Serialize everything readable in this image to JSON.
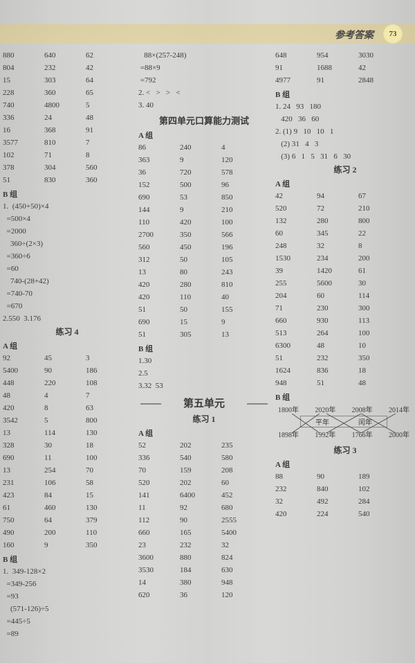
{
  "header": {
    "title": "参考答案",
    "page_num": "73"
  },
  "col1": {
    "rowsA": [
      [
        "880",
        "640",
        "62"
      ],
      [
        "804",
        "232",
        "42"
      ],
      [
        "15",
        "303",
        "64"
      ],
      [
        "228",
        "360",
        "65"
      ],
      [
        "740",
        "4800",
        "5"
      ],
      [
        "336",
        "24",
        "48"
      ],
      [
        "16",
        "368",
        "91"
      ],
      [
        "3577",
        "810",
        "7"
      ],
      [
        "102",
        "71",
        "8"
      ],
      [
        "378",
        "304",
        "560"
      ],
      [
        "51",
        "830",
        "360"
      ]
    ],
    "B_label": "B 组",
    "steps1": [
      "1.  (450+50)×4",
      "  =500×4",
      "  =2000",
      "    360÷(2×3)",
      "  =360÷6",
      "  =60",
      "    740-(28+42)",
      "  =740-70",
      "  =670",
      "2.550  3.176"
    ],
    "ex4": "练习 4",
    "A_label": "A 组",
    "rowsB": [
      [
        "92",
        "45",
        "3"
      ],
      [
        "5400",
        "90",
        "186"
      ],
      [
        "448",
        "220",
        "108"
      ],
      [
        "48",
        "4",
        "7"
      ],
      [
        "420",
        "8",
        "63"
      ],
      [
        "3542",
        "5",
        "800"
      ],
      [
        "13",
        "114",
        "130"
      ],
      [
        "328",
        "30",
        "18"
      ],
      [
        "690",
        "11",
        "100"
      ],
      [
        "13",
        "254",
        "70"
      ],
      [
        "231",
        "106",
        "58"
      ],
      [
        "423",
        "84",
        "15"
      ],
      [
        "61",
        "460",
        "130"
      ],
      [
        "750",
        "64",
        "379"
      ],
      [
        "490",
        "200",
        "110"
      ],
      [
        "160",
        "9",
        "350"
      ]
    ],
    "B2_label": "B 组",
    "steps2": [
      "1.  349-128×2",
      "  =349-256",
      "  =93",
      "    (571-126)÷5",
      "  =445÷5",
      "  =89"
    ]
  },
  "col2": {
    "top": [
      "   88×(257-248)",
      " =88×9",
      " =792",
      "2. <   >   >   <",
      "3. 40"
    ],
    "unit4_test": "第四单元口算能力测试",
    "A_label": "A 组",
    "rowsA": [
      [
        "86",
        "240",
        "4"
      ],
      [
        "363",
        "9",
        "120"
      ],
      [
        "36",
        "720",
        "578"
      ],
      [
        "152",
        "500",
        "96"
      ],
      [
        "690",
        "53",
        "850"
      ],
      [
        "144",
        "9",
        "210"
      ],
      [
        "110",
        "420",
        "100"
      ],
      [
        "2700",
        "350",
        "566"
      ],
      [
        "560",
        "450",
        "196"
      ],
      [
        "312",
        "50",
        "105"
      ],
      [
        "13",
        "80",
        "243"
      ],
      [
        "420",
        "280",
        "810"
      ],
      [
        "420",
        "110",
        "40"
      ],
      [
        "51",
        "50",
        "155"
      ],
      [
        "690",
        "15",
        "9"
      ],
      [
        "51",
        "305",
        "13"
      ]
    ],
    "B_label": "B 组",
    "B_lines": [
      "1.30",
      "2.5",
      "3.32  53"
    ],
    "unit5": "第五单元",
    "ex1": "练习 1",
    "A2_label": "A 组",
    "rowsB": [
      [
        "52",
        "202",
        "235"
      ],
      [
        "336",
        "540",
        "580"
      ],
      [
        "70",
        "159",
        "208"
      ],
      [
        "520",
        "202",
        "60"
      ],
      [
        "141",
        "6400",
        "452"
      ],
      [
        "11",
        "92",
        "680"
      ],
      [
        "112",
        "90",
        "2555"
      ],
      [
        "660",
        "165",
        "5400"
      ],
      [
        "23",
        "232",
        "32"
      ],
      [
        "3600",
        "880",
        "824"
      ],
      [
        "3530",
        "184",
        "630"
      ],
      [
        "14",
        "380",
        "948"
      ],
      [
        "620",
        "36",
        "120"
      ]
    ]
  },
  "col3": {
    "rowsTop": [
      [
        "648",
        "954",
        "3030"
      ],
      [
        "91",
        "1688",
        "42"
      ],
      [
        "4977",
        "91",
        "2848"
      ]
    ],
    "B_label": "B 组",
    "B_lines": [
      "1. 24   93   180",
      "   420   36   60",
      "2. (1) 9   10   10   1",
      "   (2) 31   4   3",
      "   (3) 6   1   5   31   6   30"
    ],
    "ex2": "练习 2",
    "A_label": "A 组",
    "rowsA": [
      [
        "42",
        "94",
        "67"
      ],
      [
        "520",
        "72",
        "210"
      ],
      [
        "132",
        "280",
        "800"
      ],
      [
        "60",
        "345",
        "22"
      ],
      [
        "248",
        "32",
        "8"
      ],
      [
        "1530",
        "234",
        "200"
      ],
      [
        "39",
        "1420",
        "61"
      ],
      [
        "255",
        "5600",
        "30"
      ],
      [
        "204",
        "60",
        "114"
      ],
      [
        "71",
        "230",
        "300"
      ],
      [
        "660",
        "930",
        "113"
      ],
      [
        "513",
        "264",
        "100"
      ],
      [
        "6300",
        "48",
        "10"
      ],
      [
        "51",
        "232",
        "350"
      ],
      [
        "1624",
        "836",
        "18"
      ],
      [
        "948",
        "51",
        "48"
      ]
    ],
    "B2_label": "B 组",
    "cross": {
      "top": [
        "1800年",
        "2020年",
        "2008年",
        "2014年"
      ],
      "mid": [
        "平年",
        "闰年"
      ],
      "bot": [
        "1898年",
        "1992年",
        "1766年",
        "2000年"
      ]
    },
    "ex3": "练习 3",
    "A2_label": "A 组",
    "rowsB": [
      [
        "88",
        "90",
        "189"
      ],
      [
        "232",
        "840",
        "102"
      ],
      [
        "32",
        "492",
        "284"
      ],
      [
        "420",
        "224",
        "540"
      ]
    ]
  }
}
